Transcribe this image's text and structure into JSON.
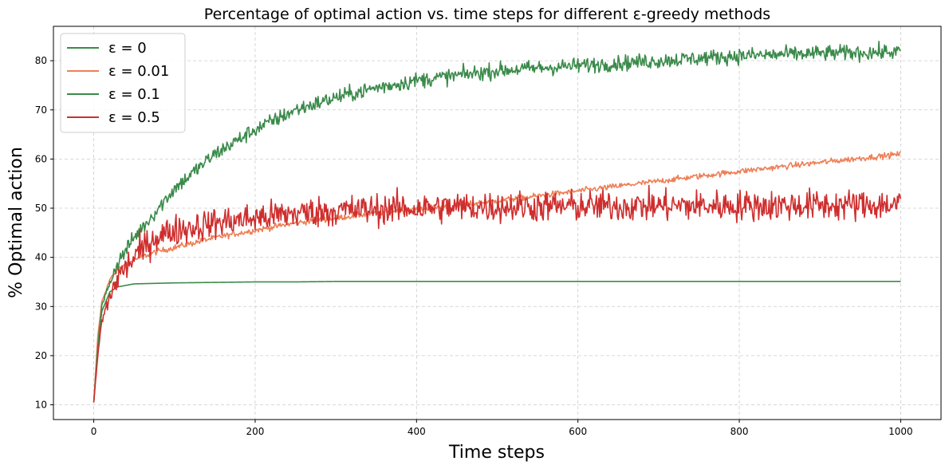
{
  "chart_data": {
    "type": "line",
    "title": "Percentage of optimal action vs. time steps for different ε-greedy methods",
    "xlabel": "Time steps",
    "ylabel": "% Optimal action",
    "xlim": [
      -50,
      1050
    ],
    "ylim": [
      7,
      87
    ],
    "xticks": [
      0,
      200,
      400,
      600,
      800,
      1000
    ],
    "yticks": [
      10,
      20,
      30,
      40,
      50,
      60,
      70,
      80
    ],
    "grid": true,
    "legend_position": "top-left",
    "x": [
      0,
      5,
      10,
      20,
      30,
      50,
      75,
      100,
      150,
      200,
      250,
      300,
      350,
      400,
      450,
      500,
      600,
      700,
      800,
      900,
      1000
    ],
    "series": [
      {
        "name": "ε = 0",
        "color": "#3a8a4a",
        "noise": 0,
        "values": [
          10.5,
          22,
          29,
          33,
          34,
          34.6,
          34.7,
          34.8,
          34.9,
          35,
          35,
          35.1,
          35.1,
          35.1,
          35.1,
          35.1,
          35.1,
          35.1,
          35.1,
          35.1,
          35.1
        ]
      },
      {
        "name": "ε = 0.01",
        "color": "#ee7f56",
        "noise": 0.3,
        "values": [
          10.5,
          24,
          31,
          35.5,
          37.5,
          39.5,
          41,
          42,
          44,
          45.5,
          47,
          48,
          49,
          49.8,
          50.5,
          51.5,
          53.5,
          55.5,
          57.5,
          59.3,
          61
        ]
      },
      {
        "name": "ε = 0.1",
        "color": "#3a8a4a",
        "noise": 0.8,
        "values": [
          10.5,
          22,
          30,
          35,
          39,
          44,
          49,
          54,
          61,
          66,
          70,
          72.5,
          74.5,
          76,
          77,
          78,
          79,
          80,
          81,
          81.5,
          81.8
        ]
      },
      {
        "name": "ε = 0.5",
        "color": "#cf2e2e",
        "noise": 1.6,
        "values": [
          10.5,
          20,
          27,
          32,
          36,
          40,
          44,
          45.5,
          47,
          48,
          49,
          49.5,
          49.8,
          50,
          50.2,
          50.3,
          50.4,
          50.5,
          50.5,
          50.6,
          50.7
        ]
      }
    ]
  }
}
